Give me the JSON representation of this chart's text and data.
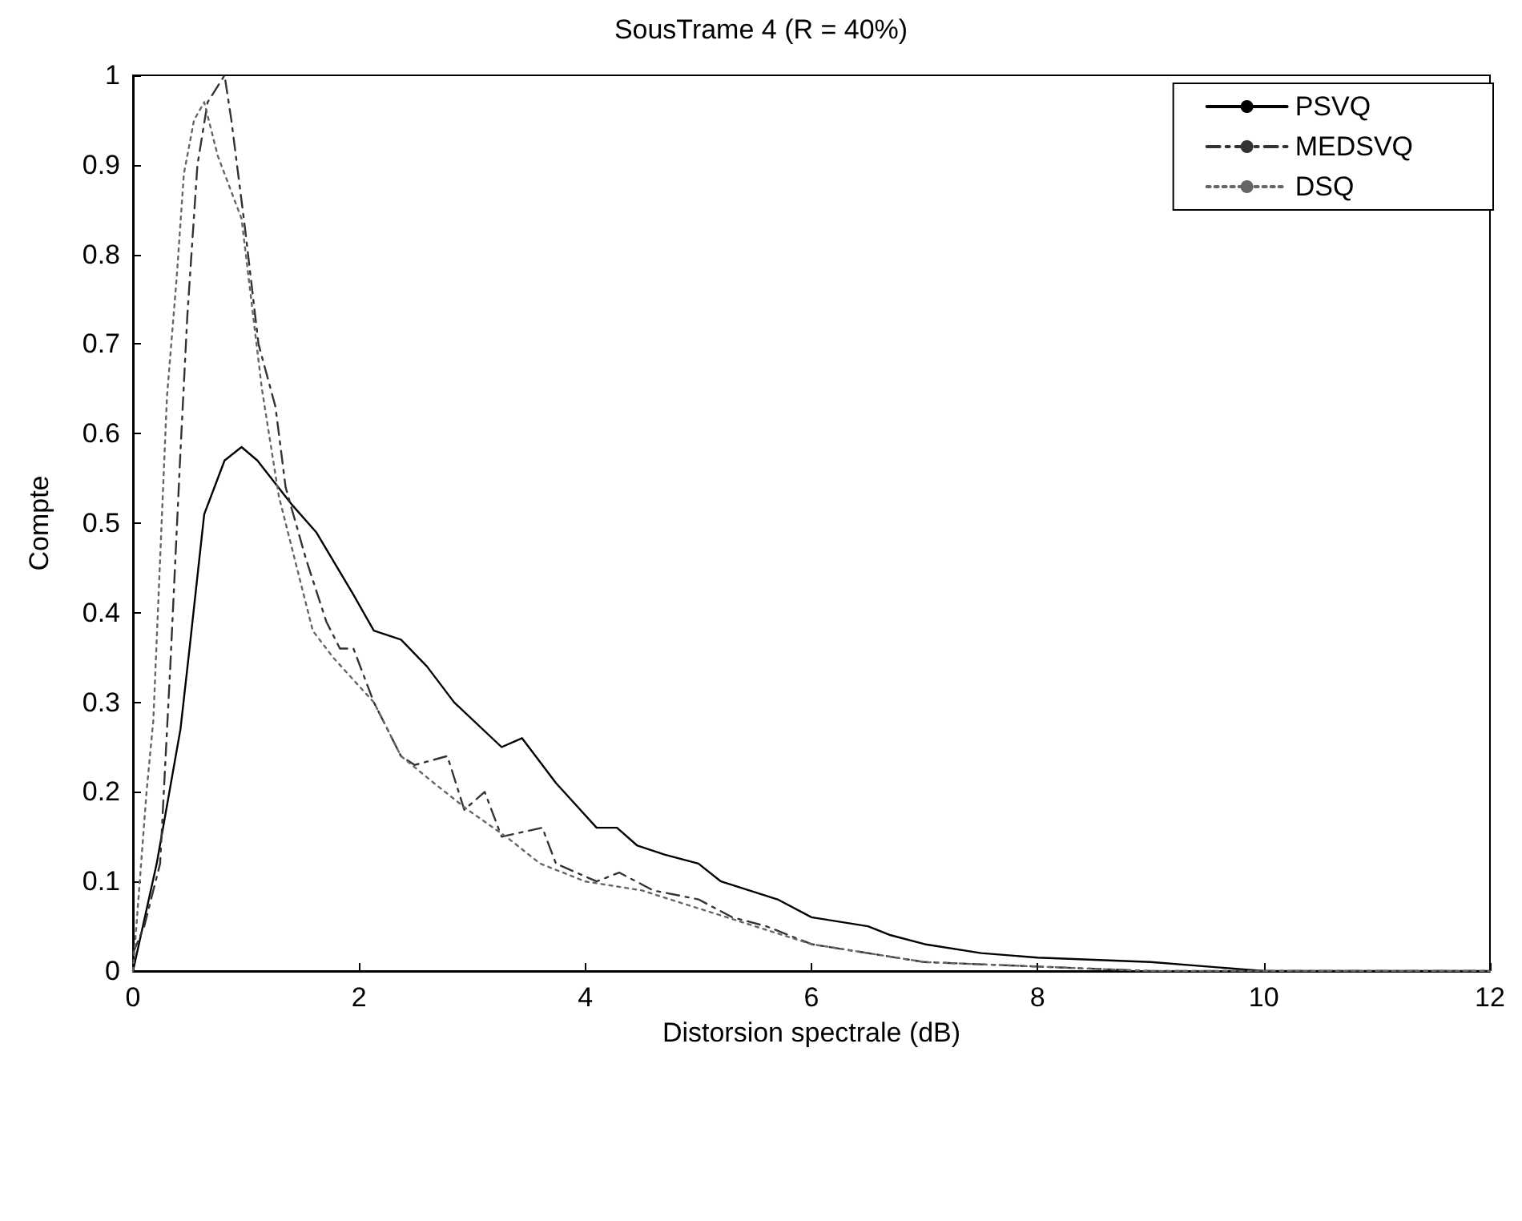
{
  "chart_data": {
    "type": "line",
    "title": "SousTrame 4 (R = 40%)",
    "xlabel": "Distorsion spectrale (dB)",
    "ylabel": "Compte",
    "xlim": [
      0,
      12
    ],
    "xticks": [
      0,
      2,
      4,
      6,
      8,
      10,
      12
    ],
    "ylim": [
      0,
      1
    ],
    "yticks": [
      0,
      0.1,
      0.2,
      0.3,
      0.4,
      0.5,
      0.6,
      0.7,
      0.8,
      0.9,
      1
    ],
    "grid": false,
    "legend": "top right",
    "marker": "none",
    "series": [
      {
        "name": "PSVQ",
        "color": "#000000",
        "line_style": "solid",
        "x": [
          0,
          0.21,
          0.42,
          0.5,
          0.63,
          0.81,
          0.96,
          1.1,
          1.41,
          1.62,
          1.95,
          2.13,
          2.37,
          2.6,
          2.84,
          3.26,
          3.44,
          3.74,
          4.1,
          4.28,
          4.46,
          4.7,
          5,
          5.2,
          5.7,
          6,
          6.5,
          6.7,
          7,
          7.5,
          8,
          9,
          9.5,
          10,
          12
        ],
        "values": [
          0,
          0.12,
          0.27,
          0.36,
          0.51,
          0.57,
          0.585,
          0.57,
          0.52,
          0.49,
          0.42,
          0.38,
          0.37,
          0.34,
          0.3,
          0.25,
          0.26,
          0.21,
          0.16,
          0.16,
          0.14,
          0.13,
          0.12,
          0.1,
          0.08,
          0.06,
          0.05,
          0.04,
          0.03,
          0.02,
          0.015,
          0.01,
          0.005,
          0,
          0
        ]
      },
      {
        "name": "MEDSVQ",
        "color": "#333333",
        "line_style": "dashed",
        "x": [
          0,
          0.1,
          0.24,
          0.33,
          0.42,
          0.48,
          0.57,
          0.66,
          0.81,
          0.87,
          0.99,
          1.11,
          1.26,
          1.35,
          1.53,
          1.71,
          1.83,
          1.95,
          2.13,
          2.25,
          2.37,
          2.49,
          2.78,
          2.93,
          3.11,
          3.26,
          3.62,
          3.74,
          4.1,
          4.3,
          4.6,
          5,
          5.3,
          5.6,
          5.8,
          6,
          6.5,
          7,
          8,
          9,
          12
        ],
        "values": [
          0.02,
          0.05,
          0.12,
          0.34,
          0.58,
          0.73,
          0.9,
          0.97,
          1,
          0.95,
          0.83,
          0.7,
          0.63,
          0.54,
          0.46,
          0.39,
          0.36,
          0.36,
          0.3,
          0.27,
          0.24,
          0.23,
          0.24,
          0.18,
          0.2,
          0.15,
          0.16,
          0.12,
          0.1,
          0.11,
          0.09,
          0.08,
          0.06,
          0.05,
          0.04,
          0.03,
          0.02,
          0.01,
          0.005,
          0,
          0
        ]
      },
      {
        "name": "DSQ",
        "color": "#666666",
        "line_style": "dotted",
        "x": [
          0,
          0.12,
          0.18,
          0.24,
          0.3,
          0.39,
          0.45,
          0.54,
          0.63,
          0.75,
          0.96,
          1.14,
          1.29,
          1.41,
          1.59,
          1.77,
          2.13,
          2.37,
          2.66,
          2.96,
          3.3,
          3.6,
          4,
          4.5,
          5,
          5.5,
          6,
          6.5,
          7,
          8,
          9,
          12
        ],
        "values": [
          0,
          0.2,
          0.28,
          0.46,
          0.64,
          0.78,
          0.89,
          0.95,
          0.97,
          0.91,
          0.84,
          0.65,
          0.53,
          0.47,
          0.38,
          0.35,
          0.3,
          0.24,
          0.21,
          0.18,
          0.15,
          0.12,
          0.1,
          0.09,
          0.07,
          0.05,
          0.03,
          0.02,
          0.01,
          0.005,
          0,
          0
        ]
      }
    ]
  }
}
